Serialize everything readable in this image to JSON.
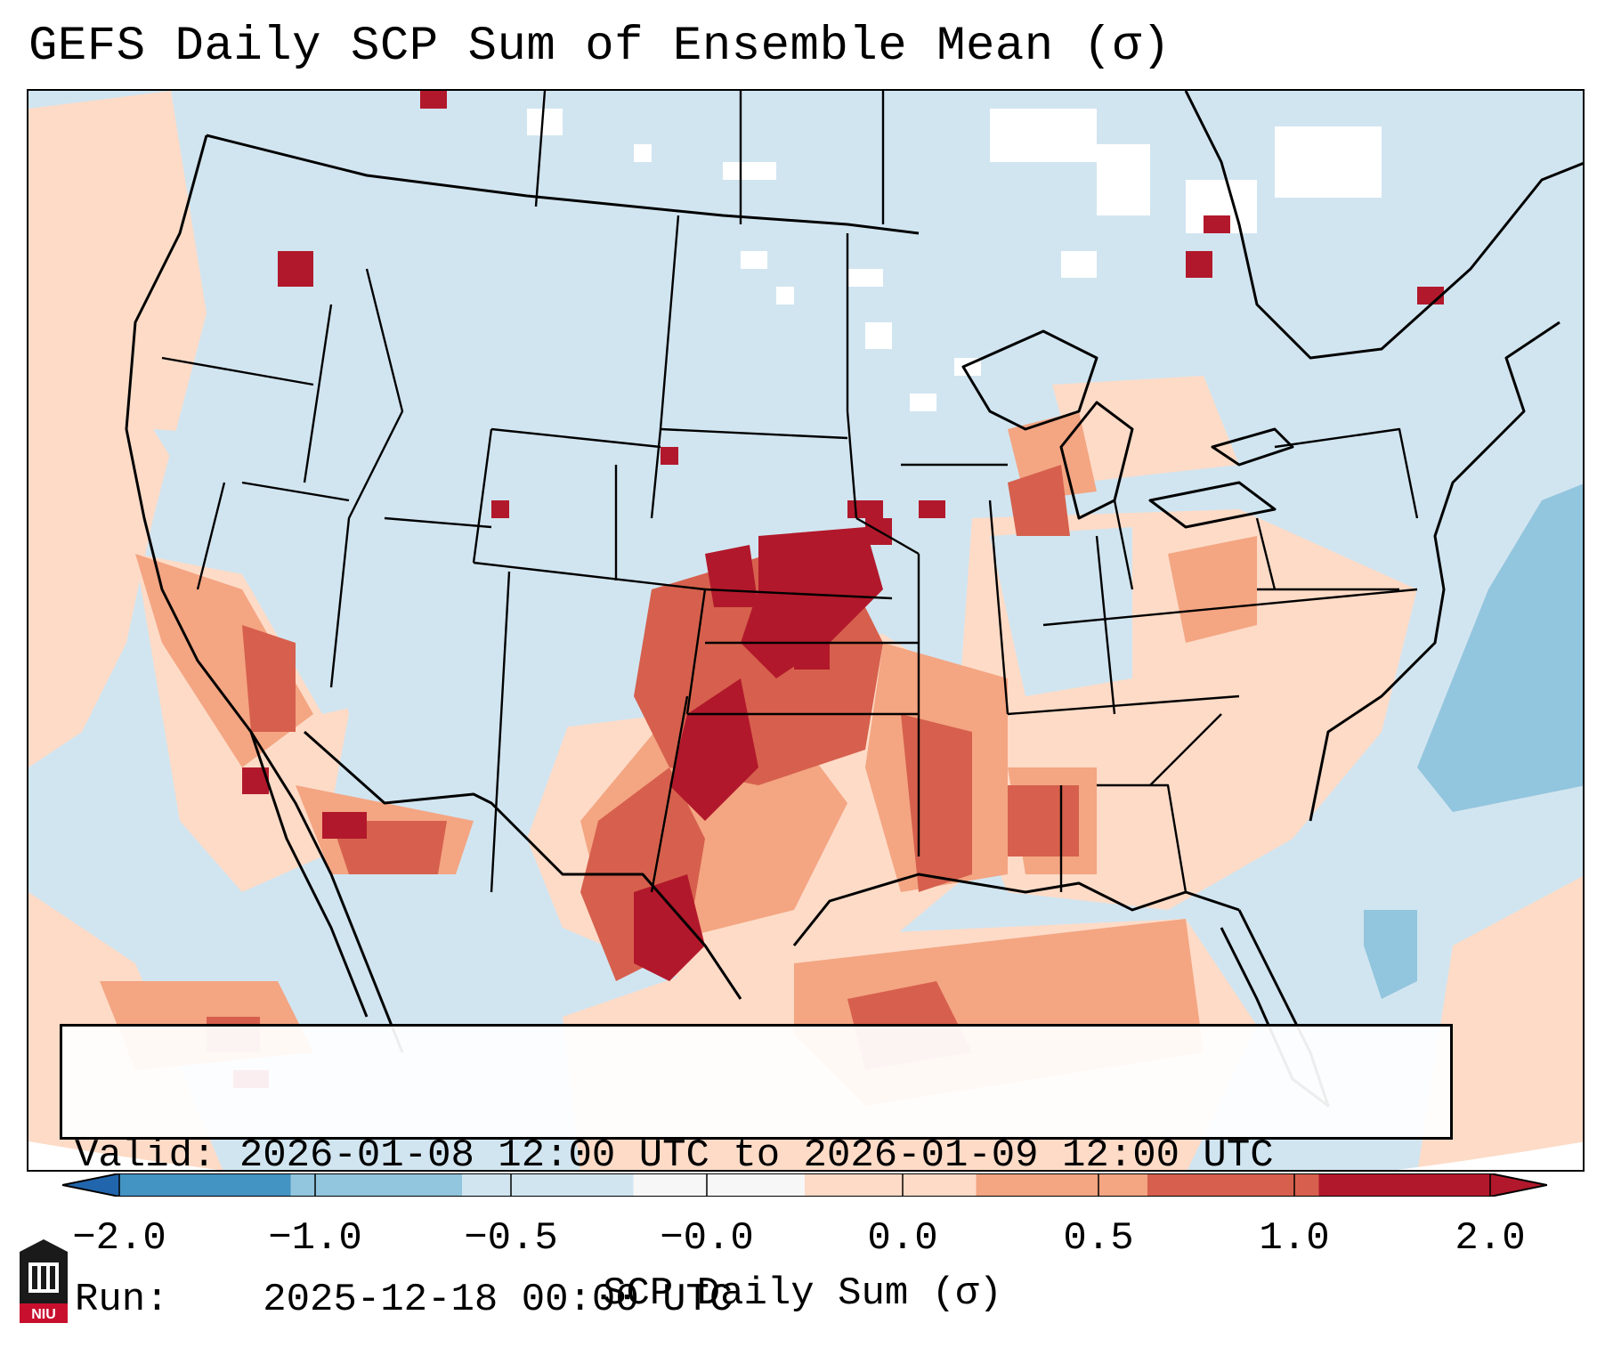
{
  "title": "GEFS Daily SCP Sum of Ensemble Mean (σ)",
  "map": {
    "description_icon": "map-icon",
    "colors": {
      "ocean": "#d1e5f0",
      "neutral_pos": "#fddbc7",
      "low_pos": "#f4a582",
      "mid_pos": "#d6604d",
      "high_pos": "#b2182b",
      "neg_light": "#92c5de",
      "blank": "#ffffff",
      "border": "#000000"
    }
  },
  "info": {
    "valid_label": "Valid:",
    "valid_value": "2026-01-08 12:00 UTC to 2026-01-09 12:00 UTC",
    "run_label": "Run:",
    "run_value": "2025-12-18 00:00 UTC"
  },
  "colorbar": {
    "label": "SCP Daily Sum (σ)",
    "ticks": [
      "−2.0",
      "−1.0",
      "−0.5",
      "−0.0",
      "0.0",
      "0.5",
      "1.0",
      "2.0"
    ],
    "colors": [
      "#4393c3",
      "#92c5de",
      "#d1e5f0",
      "#f7f7f7",
      "#fddbc7",
      "#f4a582",
      "#d6604d",
      "#b2182b"
    ],
    "extend_low_color": "#2166ac",
    "extend_high_color": "#b2182b"
  },
  "logo": {
    "text": "NIU",
    "icon": "university-logo-icon"
  }
}
